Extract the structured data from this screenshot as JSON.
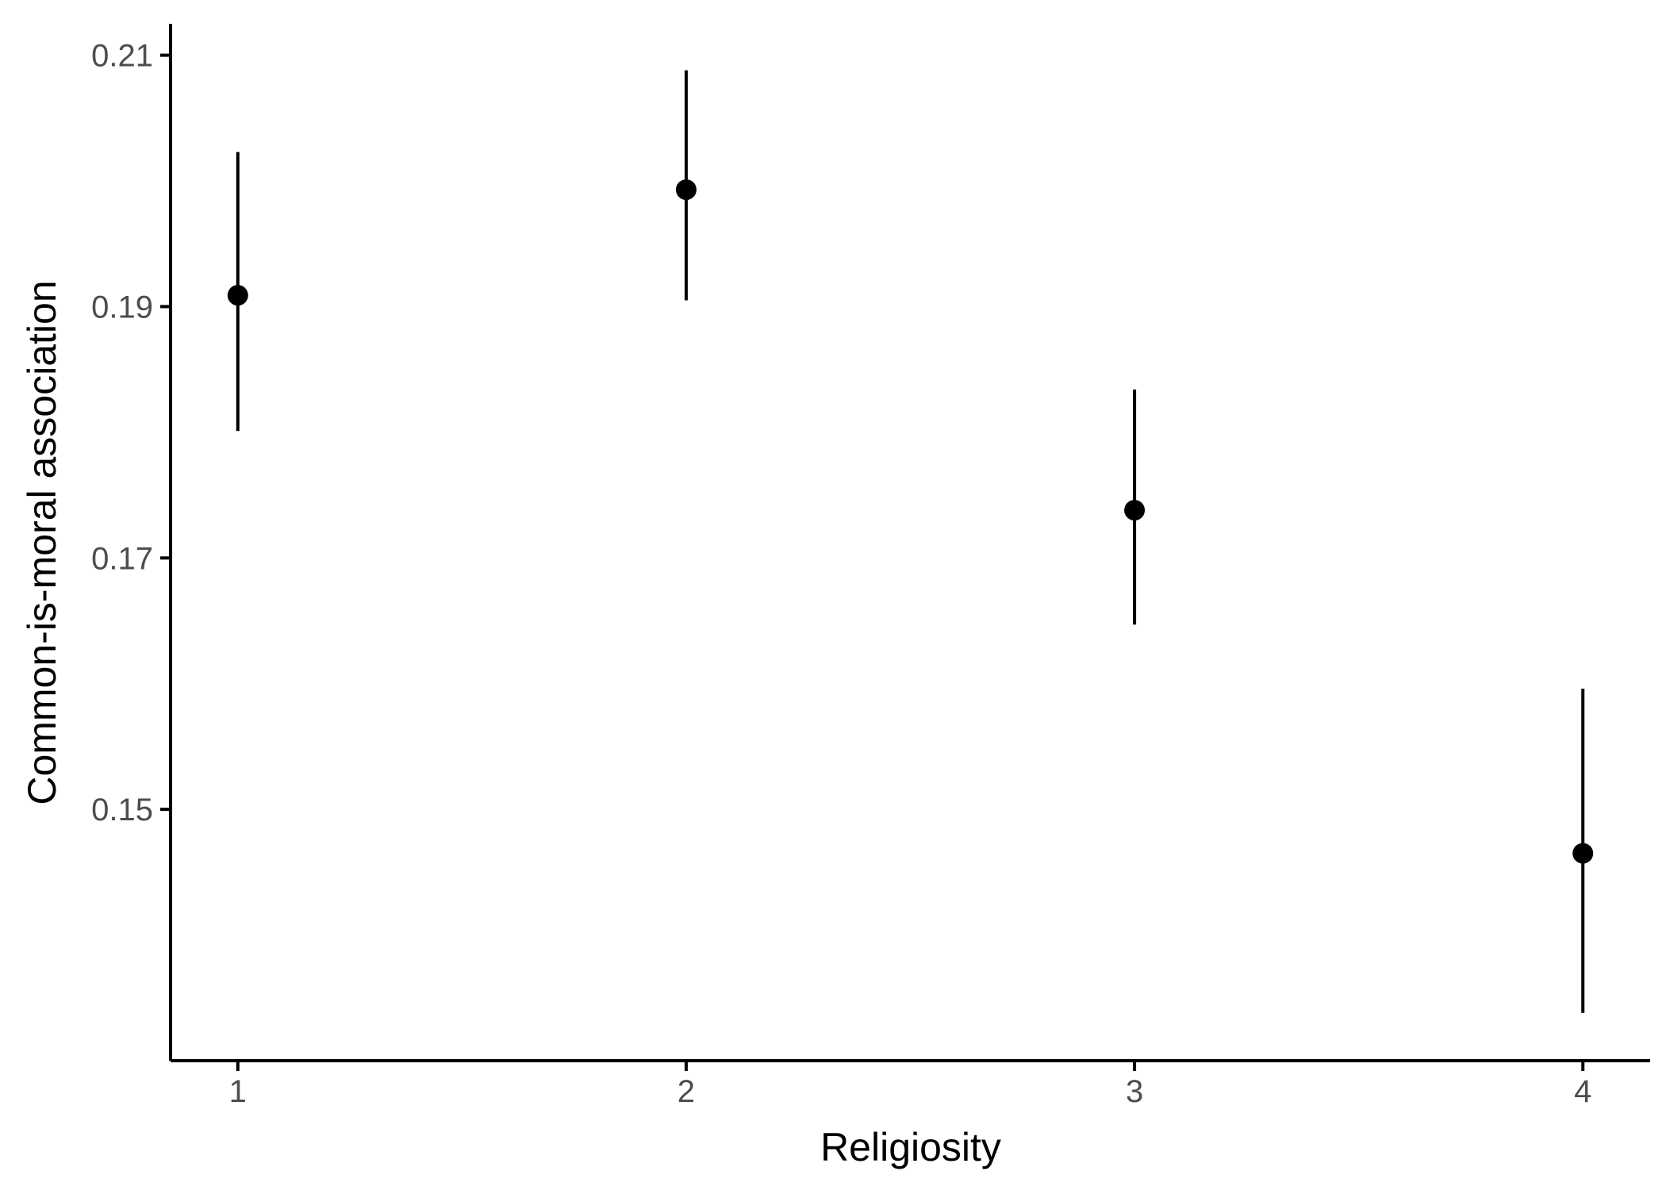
{
  "chart_data": {
    "type": "scatter",
    "title": "",
    "xlabel": "Religiosity",
    "ylabel": "Common-is-moral association",
    "x": [
      1,
      2,
      3,
      4
    ],
    "y": [
      0.1909,
      0.1993,
      0.1738,
      0.1465
    ],
    "error_low": [
      0.1801,
      0.1905,
      0.1647,
      0.1338
    ],
    "error_high": [
      0.2023,
      0.2088,
      0.1834,
      0.1596
    ],
    "x_ticks": [
      "1",
      "2",
      "3",
      "4"
    ],
    "y_ticks": [
      "0.15",
      "0.17",
      "0.19",
      "0.21"
    ],
    "xlim": [
      0.85,
      4.15
    ],
    "ylim": [
      0.13,
      0.2125
    ],
    "grid": false,
    "legend": "none",
    "colors": {
      "points": "#000000",
      "errorbars": "#000000",
      "axis": "#000000",
      "tick_labels": "#4d4d4d"
    }
  }
}
